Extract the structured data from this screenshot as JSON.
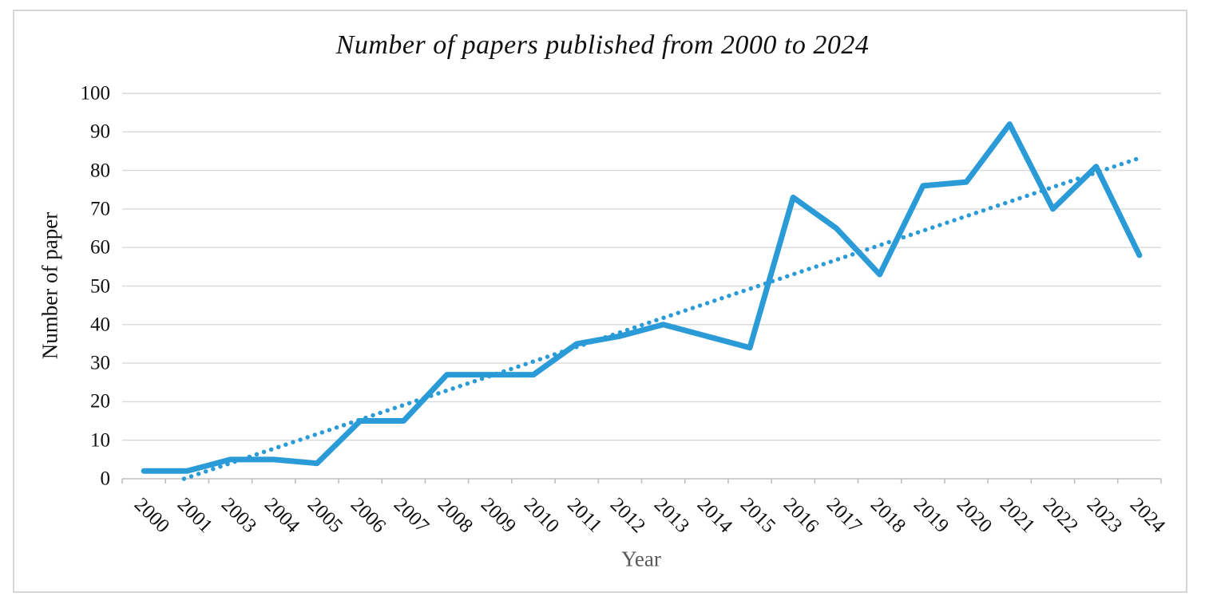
{
  "page": {
    "background": "#ffffff",
    "frame_border_color": "#d6d6d6"
  },
  "chart_data": {
    "type": "line",
    "title": "Number of papers published from 2000 to 2024",
    "xlabel": "Year",
    "ylabel": "Number of paper",
    "categories": [
      "2000",
      "2001",
      "2003",
      "2004",
      "2005",
      "2006",
      "2007",
      "2008",
      "2009",
      "2010",
      "2011",
      "2012",
      "2013",
      "2014",
      "2015",
      "2016",
      "2017",
      "2018",
      "2019",
      "2020",
      "2021",
      "2022",
      "2023",
      "2024"
    ],
    "values": [
      2,
      2,
      5,
      5,
      4,
      15,
      15,
      27,
      27,
      27,
      35,
      37,
      40,
      37,
      34,
      73,
      65,
      53,
      76,
      77,
      92,
      70,
      81,
      58
    ],
    "ylim": [
      0,
      100
    ],
    "ytick_step": 10,
    "grid": true,
    "legend": "none",
    "line_color": "#2b9bd7",
    "trendline": {
      "type": "linear",
      "style": "dotted",
      "color": "#2b9bd7",
      "slope": 3.77,
      "intercept": -3.5,
      "clip_min": 0
    },
    "gridline_color": "#d9d9d9",
    "axis_color": "#bfbfbf",
    "title_color": "#111111",
    "tick_label_color": "#111111",
    "xlabel_color": "#595959"
  }
}
